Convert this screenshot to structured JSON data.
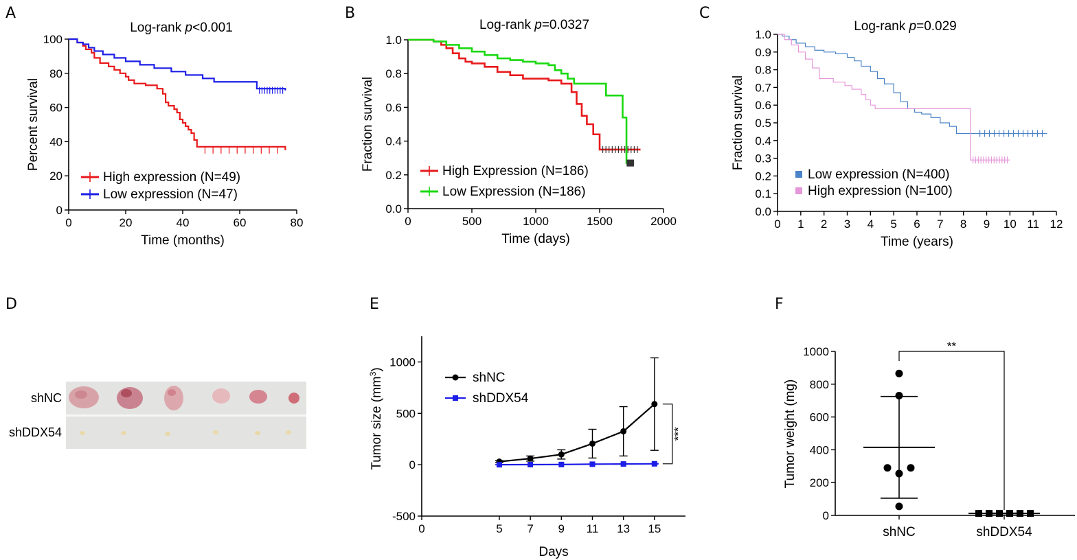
{
  "panel_letters": [
    "A",
    "B",
    "C",
    "D",
    "E",
    "F"
  ],
  "colors": {
    "red": "#e8191b",
    "blue": "#1d1ee6",
    "green": "#19d90f",
    "steel": "#4a83c7",
    "pink": "#e597d9",
    "black": "#000000"
  },
  "photo": {
    "row_top": "shNC",
    "row_bottom": "shDDX54"
  },
  "chart_data": [
    {
      "panel": "A",
      "type": "line",
      "style": "step",
      "title_prefix": "Log-rank ",
      "title_p": "p",
      "title_suffix": "<0.001",
      "xlabel": "Time (months)",
      "ylabel": "Percent survival",
      "xlim": [
        0,
        80
      ],
      "ylim": [
        0,
        100
      ],
      "xticks": [
        0,
        20,
        40,
        60,
        80
      ],
      "yticks": [
        0,
        20,
        40,
        60,
        80,
        100
      ],
      "legend_position": "lower-left",
      "series": [
        {
          "name": "High expression (N=49)",
          "color": "#e8191b",
          "x": [
            0,
            3,
            5,
            6,
            8,
            9,
            11,
            14,
            16,
            18,
            20,
            21,
            23,
            27,
            31,
            33,
            34,
            35,
            37,
            38,
            39,
            40,
            41,
            42,
            43,
            44,
            45,
            76
          ],
          "y": [
            100,
            98,
            96,
            94,
            92,
            89,
            86,
            84,
            82,
            80,
            78,
            76,
            74,
            73,
            71,
            68,
            63,
            61,
            59,
            57,
            53,
            51,
            49,
            47,
            45,
            41,
            37,
            35
          ]
        },
        {
          "name": "Low expression (N=47)",
          "color": "#1d1ee6",
          "x": [
            0,
            3,
            5,
            7,
            9,
            12,
            16,
            20,
            25,
            30,
            36,
            41,
            47,
            51,
            66,
            76
          ],
          "y": [
            100,
            98,
            97,
            95,
            93,
            91,
            89,
            87,
            85,
            83,
            81,
            79,
            77,
            75,
            71,
            70
          ]
        }
      ]
    },
    {
      "panel": "B",
      "type": "line",
      "style": "step",
      "title_prefix": "Log-rank ",
      "title_p": "p",
      "title_suffix": "=0.0327",
      "xlabel": "Time (days)",
      "ylabel": "Fraction survival",
      "xlim": [
        0,
        2000
      ],
      "ylim": [
        0,
        1.0
      ],
      "xticks": [
        0,
        500,
        1000,
        1500,
        2000
      ],
      "yticks": [
        0.0,
        0.2,
        0.4,
        0.6,
        0.8,
        1.0
      ],
      "legend_position": "lower-left",
      "series": [
        {
          "name": "High Expression (N=186)",
          "color": "#e8191b",
          "x": [
            0,
            200,
            260,
            300,
            350,
            400,
            450,
            500,
            600,
            700,
            800,
            900,
            1000,
            1100,
            1200,
            1280,
            1320,
            1360,
            1400,
            1450,
            1500,
            1820
          ],
          "y": [
            1.0,
            0.99,
            0.97,
            0.95,
            0.92,
            0.89,
            0.87,
            0.86,
            0.84,
            0.81,
            0.79,
            0.77,
            0.77,
            0.76,
            0.74,
            0.69,
            0.62,
            0.55,
            0.5,
            0.44,
            0.35,
            0.35
          ]
        },
        {
          "name": "Low Expression (N=186)",
          "color": "#19d90f",
          "x": [
            0,
            200,
            300,
            400,
            500,
            600,
            700,
            800,
            900,
            1000,
            1100,
            1150,
            1200,
            1250,
            1300,
            1400,
            1550,
            1680,
            1710,
            1770
          ],
          "y": [
            1.0,
            0.99,
            0.97,
            0.95,
            0.93,
            0.91,
            0.89,
            0.88,
            0.87,
            0.86,
            0.85,
            0.82,
            0.8,
            0.77,
            0.74,
            0.74,
            0.67,
            0.54,
            0.27,
            0.27
          ]
        }
      ]
    },
    {
      "panel": "C",
      "type": "line",
      "style": "step",
      "title_prefix": "Log-rank ",
      "title_p": "p",
      "title_suffix": "=0.029",
      "xlabel": "Time (years)",
      "ylabel": "Fraction survival",
      "xlim": [
        0,
        12
      ],
      "ylim": [
        0,
        1.0
      ],
      "xticks": [
        0,
        1,
        2,
        3,
        4,
        5,
        6,
        7,
        8,
        9,
        10,
        11,
        12
      ],
      "yticks": [
        0.0,
        0.1,
        0.2,
        0.3,
        0.4,
        0.5,
        0.6,
        0.7,
        0.8,
        0.9,
        1.0
      ],
      "legend_position": "lower-left",
      "series": [
        {
          "name": "Low expression (N=400)",
          "color": "#4a83c7",
          "x": [
            0,
            0.2,
            0.5,
            0.8,
            1.2,
            1.6,
            2.0,
            2.5,
            3.0,
            3.3,
            3.6,
            4.0,
            4.3,
            4.6,
            5.0,
            5.3,
            5.6,
            5.9,
            6.2,
            6.6,
            7.0,
            7.4,
            7.7,
            8.5,
            11.6
          ],
          "y": [
            1.0,
            0.99,
            0.97,
            0.95,
            0.93,
            0.91,
            0.9,
            0.89,
            0.87,
            0.85,
            0.82,
            0.79,
            0.75,
            0.72,
            0.67,
            0.62,
            0.58,
            0.56,
            0.55,
            0.53,
            0.5,
            0.48,
            0.44,
            0.44,
            0.44
          ]
        },
        {
          "name": "High expression (N=100)",
          "color": "#e597d9",
          "x": [
            0,
            0.3,
            0.6,
            0.9,
            1.2,
            1.5,
            1.8,
            2.4,
            2.9,
            3.2,
            3.6,
            3.8,
            4.0,
            4.2,
            6.0,
            8.3,
            10.0
          ],
          "y": [
            1.0,
            0.97,
            0.94,
            0.9,
            0.86,
            0.81,
            0.75,
            0.73,
            0.71,
            0.69,
            0.66,
            0.63,
            0.6,
            0.58,
            0.58,
            0.29,
            0.29
          ]
        }
      ]
    },
    {
      "panel": "E",
      "type": "line",
      "xlabel": "Days",
      "ylabel": "Tumor size (mm³)",
      "ylabel_main": "Tumor size (mm",
      "ylabel_sup": "3",
      "ylabel_end": ")",
      "xlim": [
        0,
        17
      ],
      "ylim": [
        -500,
        1250
      ],
      "xticks": [
        0,
        5,
        7,
        9,
        11,
        13,
        15
      ],
      "yticks": [
        -500,
        0,
        500,
        1000
      ],
      "legend_position": "top-left",
      "significance": "***",
      "series": [
        {
          "name": "shNC",
          "color": "#000000",
          "marker": "circle",
          "x": [
            5,
            7,
            9,
            11,
            13,
            15
          ],
          "y": [
            30,
            60,
            100,
            205,
            325,
            590
          ],
          "err": [
            10,
            25,
            45,
            140,
            240,
            450
          ]
        },
        {
          "name": "shDDX54",
          "color": "#1d1ee6",
          "marker": "square",
          "x": [
            5,
            7,
            9,
            11,
            13,
            15
          ],
          "y": [
            0,
            1,
            2,
            5,
            7,
            9
          ],
          "err": [
            1,
            1,
            1,
            2,
            2,
            3
          ]
        }
      ]
    },
    {
      "panel": "F",
      "type": "scatter",
      "xlabel": "",
      "ylabel": "Tumor weight (mg)",
      "categories": [
        "shNC",
        "shDDX54"
      ],
      "ylim": [
        0,
        1000
      ],
      "yticks": [
        0,
        200,
        400,
        600,
        800,
        1000
      ],
      "significance": "**",
      "groups": [
        {
          "name": "shNC",
          "values": [
            865,
            730,
            290,
            290,
            255,
            55
          ],
          "mean": 415,
          "sd": 310
        },
        {
          "name": "shDDX54",
          "values": [
            12,
            12,
            12,
            12,
            12,
            12
          ],
          "mean": 12,
          "sd": 2
        }
      ]
    }
  ]
}
